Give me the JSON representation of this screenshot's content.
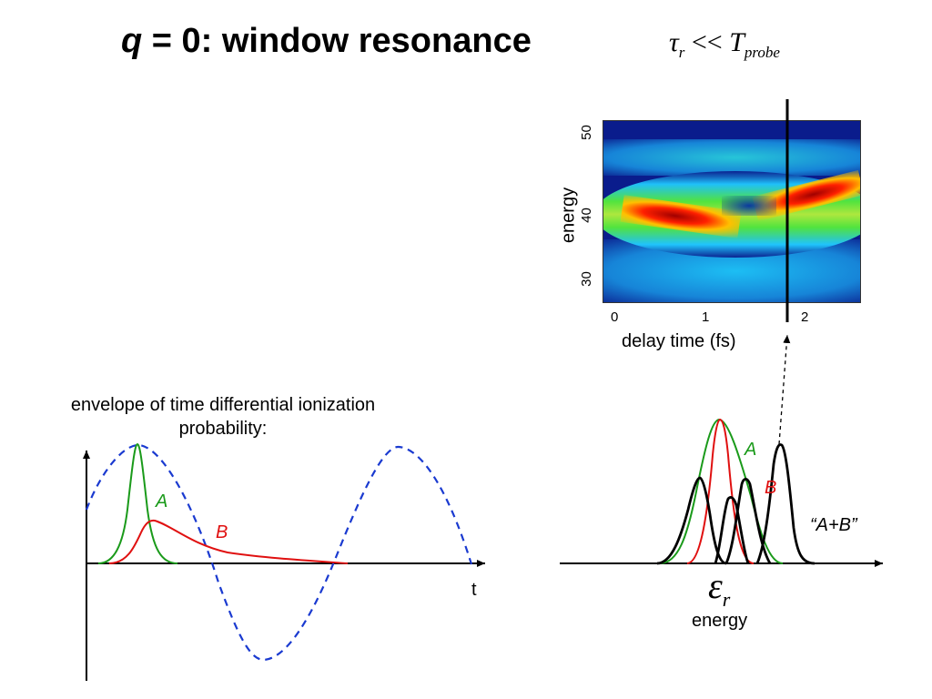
{
  "title": {
    "variable": "q",
    "rest": " = 0:  window resonance"
  },
  "relation": {
    "tau": "τ",
    "tau_sub": "r",
    "op": " << ",
    "T": "T",
    "T_sub": "probe"
  },
  "envelope_caption_line1": "envelope of time differential ionization",
  "envelope_caption_line2": "probability:",
  "left_plot": {
    "curve_labels": {
      "A": "A",
      "B": "B"
    },
    "x_axis_label": "t",
    "colors": {
      "A": "#1a9a1a",
      "B": "#e01010",
      "field": "#1a3ad0"
    }
  },
  "spectrogram": {
    "ylabel": "energy",
    "xlabel": "delay time (fs)",
    "x_ticks": [
      "0",
      "1",
      "2"
    ],
    "y_ticks": [
      "30",
      "40",
      "50"
    ],
    "xlim": [
      -0.15,
      2.6
    ],
    "ylim": [
      27,
      52
    ],
    "marker_delay": 1.8
  },
  "right_plot": {
    "curve_labels": {
      "A": "A",
      "B": "B",
      "sum": "“A+B”"
    },
    "eps": "ε",
    "eps_sub": "r",
    "x_axis_label": "energy"
  }
}
